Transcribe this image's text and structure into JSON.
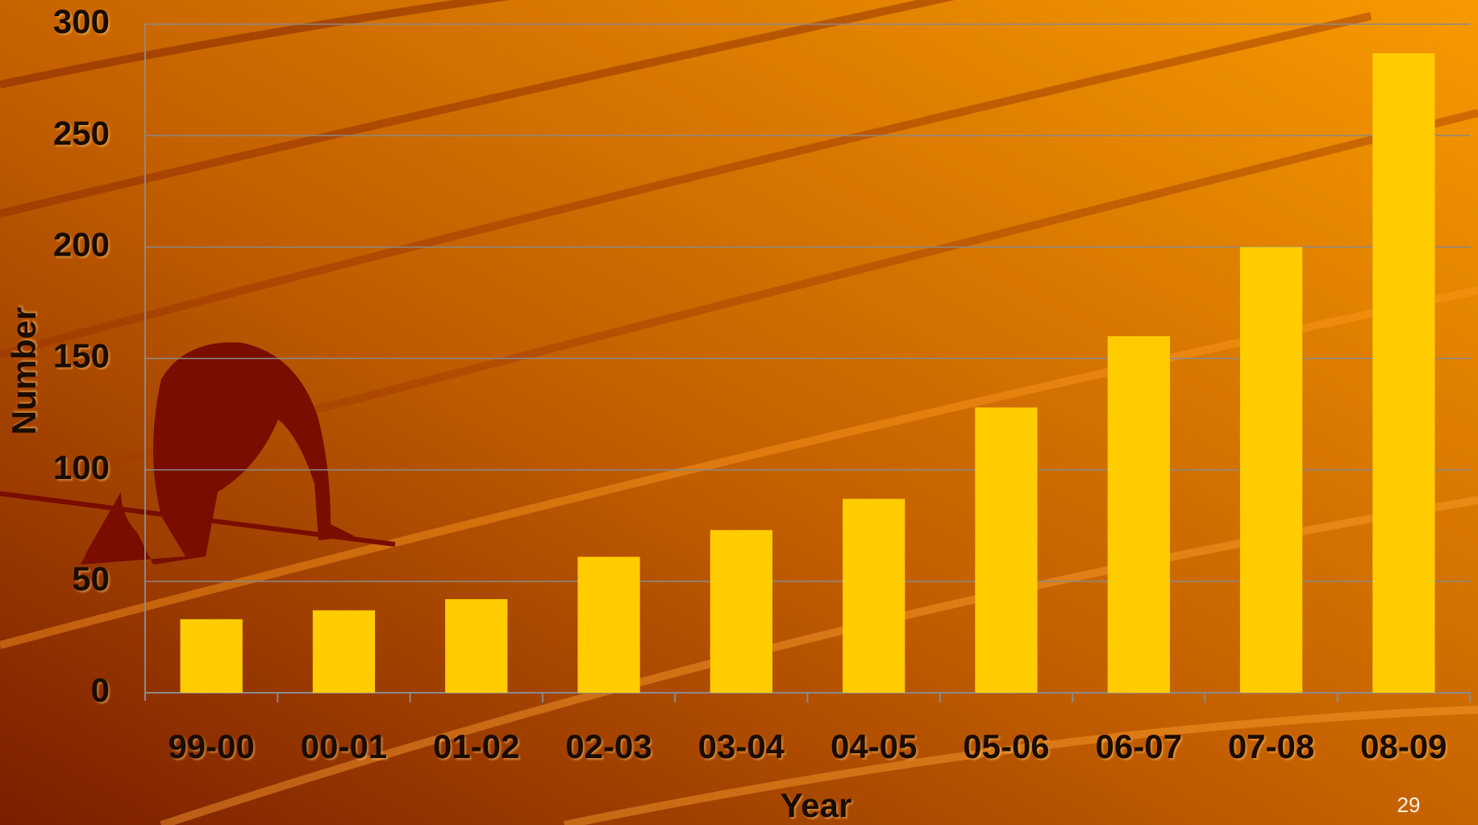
{
  "chart_data": {
    "type": "bar",
    "x_label": "Year",
    "y_label": "Number",
    "page_number": "29",
    "categories": [
      "99-00",
      "00-01",
      "01-02",
      "02-03",
      "03-04",
      "04-05",
      "05-06",
      "06-07",
      "07-08",
      "08-09"
    ],
    "values": [
      33,
      37,
      42,
      61,
      73,
      87,
      128,
      160,
      200,
      287
    ],
    "color": "#ffcc00",
    "ylim": [
      0,
      300
    ],
    "yticks": [
      0,
      50,
      100,
      150,
      200,
      250,
      300
    ],
    "grid": true
  }
}
